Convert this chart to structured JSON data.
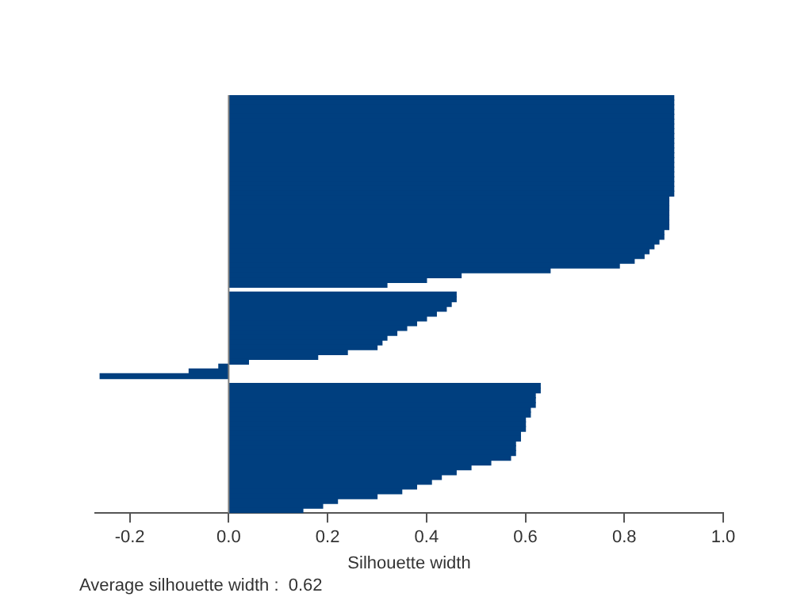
{
  "chart_data": {
    "type": "bar",
    "orientation": "horizontal",
    "xlabel": "Silhouette width",
    "annotations": [
      "Average silhouette width :  0.62"
    ],
    "categories": [
      null,
      null,
      null,
      null,
      null,
      null,
      null,
      null,
      null,
      null,
      null,
      null,
      null,
      null,
      null,
      null,
      null,
      null,
      null,
      null,
      null,
      null,
      null,
      null,
      null,
      null,
      null,
      null,
      null,
      null,
      null,
      null,
      null,
      null,
      null,
      null,
      null,
      null,
      null,
      null,
      null,
      null,
      null,
      null,
      null,
      null,
      null,
      null,
      null,
      null,
      null,
      null,
      null,
      null,
      null,
      null,
      null,
      null,
      null,
      null,
      null,
      null,
      null,
      null,
      null,
      null,
      null,
      null,
      null,
      null,
      null,
      null,
      null,
      null,
      null,
      null,
      null,
      null,
      null,
      null,
      null,
      null,
      null,
      null,
      null,
      null,
      null
    ],
    "values": [
      0.9,
      0.9,
      0.9,
      0.9,
      0.9,
      0.9,
      0.9,
      0.9,
      0.9,
      0.9,
      0.9,
      0.9,
      0.9,
      0.9,
      0.9,
      0.9,
      0.9,
      0.9,
      0.9,
      0.9,
      0.9,
      0.89,
      0.89,
      0.89,
      0.89,
      0.89,
      0.89,
      0.89,
      0.88,
      0.88,
      0.87,
      0.86,
      0.85,
      0.84,
      0.82,
      0.79,
      0.65,
      0.47,
      0.4,
      0.32,
      null,
      0.46,
      0.46,
      0.45,
      0.44,
      0.42,
      0.4,
      0.38,
      0.36,
      0.34,
      0.32,
      0.31,
      0.3,
      0.24,
      0.18,
      0.04,
      -0.02,
      -0.08,
      -0.26,
      null,
      0.63,
      0.63,
      0.62,
      0.62,
      0.62,
      0.61,
      0.61,
      0.6,
      0.6,
      0.6,
      0.59,
      0.59,
      0.58,
      0.58,
      0.58,
      0.57,
      0.53,
      0.49,
      0.46,
      0.43,
      0.41,
      0.38,
      0.35,
      0.3,
      0.22,
      0.19,
      0.15
    ],
    "color": "#003f7f",
    "xlim": [
      -0.27,
      1.0
    ],
    "xticks": [
      -0.2,
      {
        "value": 0,
        "label": "0.0"
      },
      0.2,
      0.4,
      0.6,
      0.8,
      {
        "value": 1,
        "label": "1.0"
      }
    ],
    "tick_labels": "x",
    "grid": false,
    "legend": false,
    "ref_lines": [
      {
        "axis": "x",
        "value": 0,
        "color": "#808080"
      }
    ]
  }
}
